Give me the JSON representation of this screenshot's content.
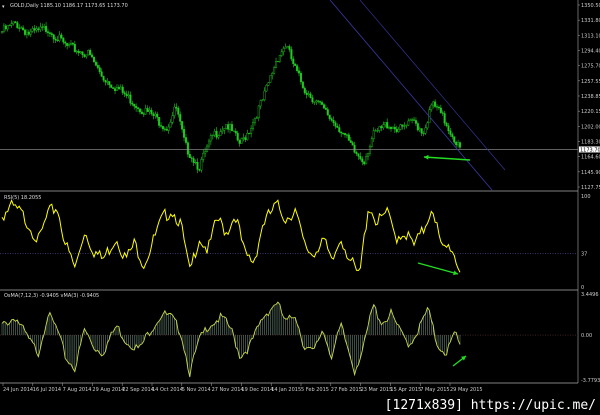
{
  "colors": {
    "background": "#000000",
    "candles": "#22cc22",
    "rsi": "#ffff00",
    "osma_line": "#c8d84a",
    "osma_hist": "#7a9a8a",
    "trendline": "#3a3aa8",
    "arrow": "#22dd22",
    "grid": "#aaaaaa"
  },
  "chart_data": [
    {
      "type": "line",
      "title": "GOLD,Daily",
      "header_values": "1185.10 1186.17 1173.65 1173.70",
      "current_price_label": "1173.70",
      "yticks": [
        "1350.50",
        "1331.80",
        "1313.10",
        "1294.40",
        "1275.70",
        "1257.55",
        "1238.85",
        "1220.15",
        "1202.00",
        "1183.30",
        "1164.60",
        "1145.90",
        "1127.75"
      ],
      "ylim": [
        1127.75,
        1350.5
      ],
      "series": [
        {
          "values": [
            [
              0,
              1318
            ],
            [
              0.03,
              1328
            ],
            [
              0.06,
              1315
            ],
            [
              0.1,
              1322
            ],
            [
              0.14,
              1300
            ],
            [
              0.19,
              1290
            ],
            [
              0.22,
              1262
            ],
            [
              0.26,
              1245
            ],
            [
              0.3,
              1225
            ],
            [
              0.33,
              1215
            ],
            [
              0.36,
              1200
            ],
            [
              0.38,
              1225
            ],
            [
              0.4,
              1178
            ],
            [
              0.43,
              1152
            ],
            [
              0.46,
              1190
            ],
            [
              0.49,
              1205
            ],
            [
              0.52,
              1180
            ],
            [
              0.54,
              1198
            ],
            [
              0.57,
              1235
            ],
            [
              0.6,
              1285
            ],
            [
              0.62,
              1302
            ],
            [
              0.64,
              1272
            ],
            [
              0.66,
              1248
            ],
            [
              0.69,
              1230
            ],
            [
              0.72,
              1210
            ],
            [
              0.74,
              1198
            ],
            [
              0.77,
              1170
            ],
            [
              0.79,
              1160
            ],
            [
              0.81,
              1190
            ],
            [
              0.84,
              1205
            ],
            [
              0.87,
              1198
            ],
            [
              0.9,
              1208
            ],
            [
              0.92,
              1195
            ],
            [
              0.94,
              1230
            ],
            [
              0.96,
              1215
            ],
            [
              0.98,
              1195
            ],
            [
              1,
              1174
            ]
          ]
        }
      ]
    },
    {
      "type": "line",
      "title": "RSI(5) 18.2055",
      "ylim": [
        0,
        100
      ],
      "yticks": [
        "100",
        "37",
        "0"
      ],
      "level": 37,
      "series": [
        {
          "values": [
            [
              0,
              78
            ],
            [
              0.02,
              88
            ],
            [
              0.04,
              82
            ],
            [
              0.06,
              68
            ],
            [
              0.08,
              50
            ],
            [
              0.1,
              80
            ],
            [
              0.12,
              88
            ],
            [
              0.14,
              45
            ],
            [
              0.16,
              20
            ],
            [
              0.18,
              62
            ],
            [
              0.2,
              40
            ],
            [
              0.22,
              30
            ],
            [
              0.25,
              55
            ],
            [
              0.27,
              30
            ],
            [
              0.29,
              48
            ],
            [
              0.31,
              25
            ],
            [
              0.33,
              50
            ],
            [
              0.35,
              75
            ],
            [
              0.37,
              85
            ],
            [
              0.39,
              70
            ],
            [
              0.41,
              15
            ],
            [
              0.43,
              55
            ],
            [
              0.45,
              40
            ],
            [
              0.47,
              75
            ],
            [
              0.49,
              60
            ],
            [
              0.51,
              80
            ],
            [
              0.53,
              35
            ],
            [
              0.55,
              28
            ],
            [
              0.57,
              70
            ],
            [
              0.6,
              90
            ],
            [
              0.62,
              75
            ],
            [
              0.64,
              85
            ],
            [
              0.66,
              45
            ],
            [
              0.68,
              35
            ],
            [
              0.7,
              55
            ],
            [
              0.72,
              25
            ],
            [
              0.74,
              55
            ],
            [
              0.76,
              30
            ],
            [
              0.78,
              10
            ],
            [
              0.8,
              90
            ],
            [
              0.82,
              70
            ],
            [
              0.84,
              82
            ],
            [
              0.86,
              55
            ],
            [
              0.88,
              60
            ],
            [
              0.9,
              45
            ],
            [
              0.92,
              62
            ],
            [
              0.94,
              90
            ],
            [
              0.96,
              40
            ],
            [
              0.98,
              45
            ],
            [
              1,
              18
            ]
          ]
        }
      ]
    },
    {
      "type": "bar",
      "title": "OsMA(7,12,3) -0.9405  vMA(3) -0.9405",
      "ylim": [
        -3.7793,
        3.4496
      ],
      "yticks": [
        "3.4496",
        "0.00",
        "-3.7793"
      ],
      "series": [
        {
          "values": [
            [
              0,
              0.8
            ],
            [
              0.03,
              1.5
            ],
            [
              0.06,
              -0.5
            ],
            [
              0.08,
              -1.5
            ],
            [
              0.1,
              1.8
            ],
            [
              0.12,
              0.5
            ],
            [
              0.14,
              -2
            ],
            [
              0.16,
              -2.8
            ],
            [
              0.18,
              0.5
            ],
            [
              0.2,
              -1
            ],
            [
              0.22,
              -1.5
            ],
            [
              0.25,
              0.8
            ],
            [
              0.27,
              -0.5
            ],
            [
              0.3,
              -1.2
            ],
            [
              0.32,
              0.2
            ],
            [
              0.35,
              1.8
            ],
            [
              0.37,
              1.5
            ],
            [
              0.39,
              0.3
            ],
            [
              0.41,
              -3.2
            ],
            [
              0.43,
              -0.5
            ],
            [
              0.45,
              0.8
            ],
            [
              0.48,
              1.5
            ],
            [
              0.5,
              0.5
            ],
            [
              0.52,
              -1.8
            ],
            [
              0.54,
              -1
            ],
            [
              0.57,
              1.5
            ],
            [
              0.6,
              2.8
            ],
            [
              0.62,
              1
            ],
            [
              0.64,
              1.8
            ],
            [
              0.66,
              -1
            ],
            [
              0.68,
              -1.5
            ],
            [
              0.7,
              0.5
            ],
            [
              0.72,
              -1.8
            ],
            [
              0.74,
              0.8
            ],
            [
              0.77,
              -3
            ],
            [
              0.79,
              -1
            ],
            [
              0.81,
              2.5
            ],
            [
              0.83,
              1
            ],
            [
              0.85,
              1.8
            ],
            [
              0.87,
              0.2
            ],
            [
              0.89,
              -0.8
            ],
            [
              0.91,
              0.5
            ],
            [
              0.93,
              2.2
            ],
            [
              0.95,
              -0.8
            ],
            [
              0.97,
              -1.5
            ],
            [
              0.99,
              0.2
            ],
            [
              1,
              -0.94
            ]
          ]
        }
      ]
    }
  ],
  "x_ticks": [
    "24 Jun 2014",
    "16 Jul 2014",
    "7 Aug 2014",
    "29 Aug 2014",
    "22 Sep 2014",
    "14 Oct 2014",
    "5 Nov 2014",
    "27 Nov 2014",
    "19 Dec 2014",
    "14 Jan 2015",
    "5 Feb 2015",
    "27 Feb 2015",
    "23 Mar 2015",
    "15 Apr 2015",
    "7 May 2015",
    "29 May 2015"
  ],
  "watermark": "[1271x839] https://upic.me/"
}
